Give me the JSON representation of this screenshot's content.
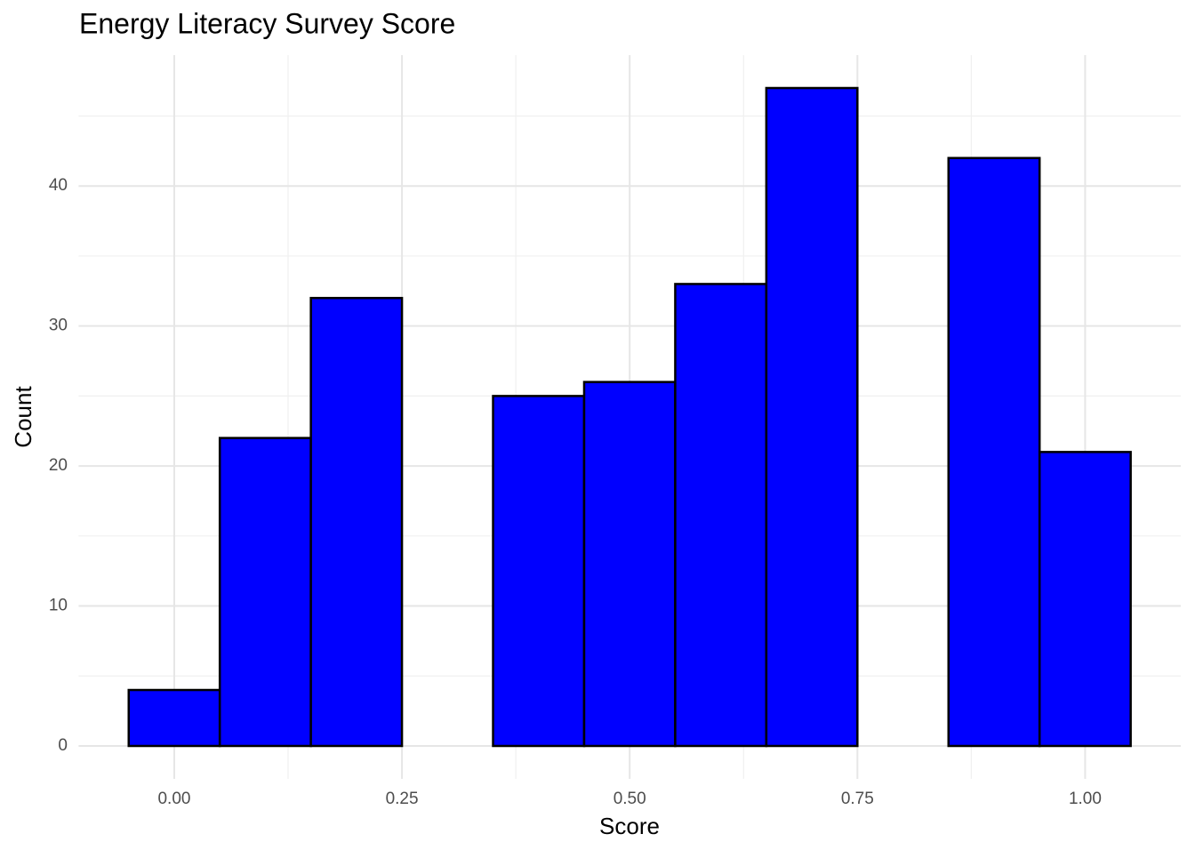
{
  "chart_data": {
    "type": "histogram",
    "title": "Energy Literacy Survey Score",
    "x_label": "Score",
    "y_label": "Count",
    "bins": [
      -0.05,
      0.05,
      0.15,
      0.25,
      0.35,
      0.45,
      0.55,
      0.65,
      0.75,
      0.85,
      0.95,
      1.05
    ],
    "values": [
      4,
      22,
      32,
      0,
      25,
      26,
      33,
      47,
      0,
      42,
      21
    ],
    "color": "#0000ff",
    "edge_color": "#000000",
    "xlim": [
      -0.105,
      1.105
    ],
    "ylim": [
      -2.35,
      49.35
    ],
    "xticks": [
      {
        "value": 0,
        "label": "0.00"
      },
      {
        "value": 0.25,
        "label": "0.25"
      },
      {
        "value": 0.5,
        "label": "0.50"
      },
      {
        "value": 0.75,
        "label": "0.75"
      },
      {
        "value": 1,
        "label": "1.00"
      }
    ],
    "yticks": [
      0,
      10,
      20,
      30,
      40
    ],
    "grid": true
  }
}
